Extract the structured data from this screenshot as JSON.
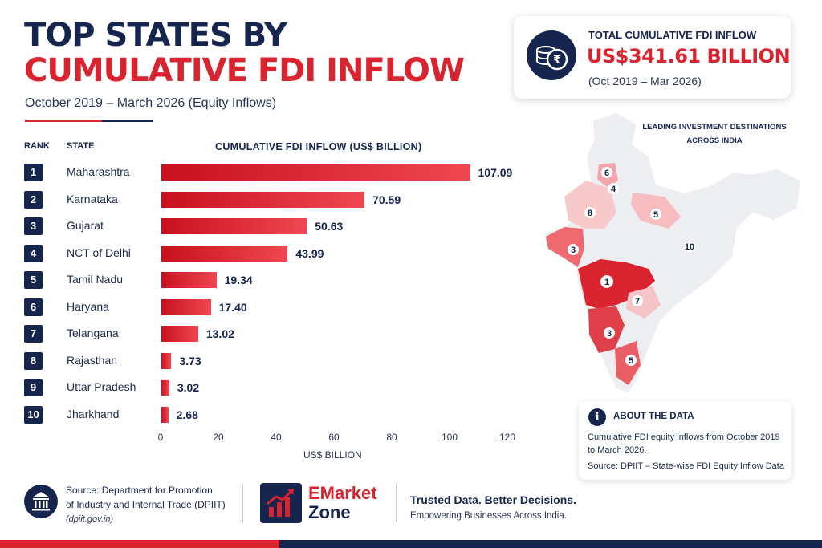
{
  "header": {
    "title_line1": "TOP STATES BY",
    "title_line2": "CUMULATIVE FDI INFLOW",
    "subtitle": "October 2019 – March 2026 (Equity Inflows)"
  },
  "table_header": {
    "rank": "RANK",
    "state": "STATE",
    "value": "CUMULATIVE FDI INFLOW (US$ BILLION)"
  },
  "chart_data": {
    "type": "bar",
    "orientation": "horizontal",
    "title": "CUMULATIVE FDI INFLOW (US$ BILLION)",
    "xlabel": "US$ BILLION",
    "xlim": [
      0,
      120
    ],
    "ticks": [
      "0",
      "20",
      "40",
      "60",
      "80",
      "100",
      "120"
    ],
    "grid": false,
    "categories": [
      "Maharashtra",
      "Karnataka",
      "Gujarat",
      "NCT of Delhi",
      "Tamil Nadu",
      "Haryana",
      "Telangana",
      "Rajasthan",
      "Uttar Pradesh",
      "Jharkhand"
    ],
    "ranks": [
      "1",
      "2",
      "3",
      "4",
      "5",
      "6",
      "7",
      "8",
      "9",
      "10"
    ],
    "values": [
      107.09,
      70.59,
      50.63,
      43.99,
      19.34,
      17.4,
      13.02,
      3.73,
      3.02,
      2.68
    ],
    "value_labels": [
      "107.09",
      "70.59",
      "50.63",
      "43.99",
      "19.34",
      "17.40",
      "13.02",
      "3.73",
      "3.02",
      "2.68"
    ],
    "bar_color": "#d9232e"
  },
  "total_card": {
    "icon": "rupee-coins-icon",
    "label": "TOTAL CUMULATIVE FDI INFLOW",
    "value": "US$341.61 BILLION",
    "period": "(Oct 2019 – Mar 2026)"
  },
  "map": {
    "caption_line1": "LEADING INVESTMENT DESTINATIONS",
    "caption_line2": "ACROSS INDIA",
    "markers": [
      "6",
      "4",
      "8",
      "5",
      "3",
      "10",
      "1",
      "7",
      "3",
      "5"
    ]
  },
  "about": {
    "icon": "info-icon",
    "title": "ABOUT THE DATA",
    "text": "Cumulative FDI equity inflows from October 2019 to March 2026.",
    "source": "Source: DPIIT – State-wise FDI Equity Inflow Data"
  },
  "footer": {
    "source_line1": "Source: Department for Promotion",
    "source_line2": "of Industry and Internal Trade (DPIIT)",
    "source_line3": "(dpiit.gov.in)",
    "brand_line1": "EMarket",
    "brand_line2": "Zone",
    "tagline1": "Trusted Data. Better Decisions.",
    "tagline2": "Empowering Businesses Across India."
  },
  "colors": {
    "navy": "#16254d",
    "red": "#d9232e"
  }
}
